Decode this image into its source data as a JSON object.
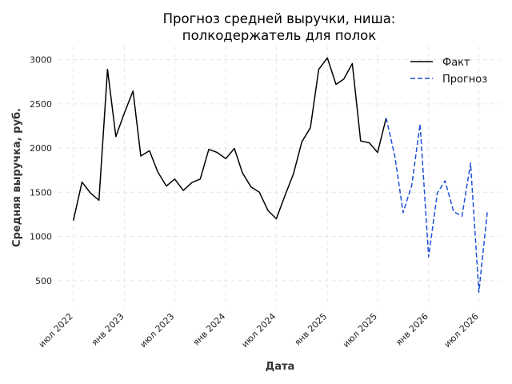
{
  "chart_data": {
    "type": "line",
    "title_lines": [
      "Прогноз средней выручки, ниша:",
      "полкодержатель для полок"
    ],
    "xlabel": "Дата",
    "ylabel": "Средняя выручка, руб.",
    "ylim": [
      200,
      3150
    ],
    "yticks": [
      500,
      1000,
      1500,
      2000,
      2500,
      3000
    ],
    "xticks": [
      {
        "date": "2022-07",
        "label": "июл 2022"
      },
      {
        "date": "2023-01",
        "label": "янв 2023"
      },
      {
        "date": "2023-07",
        "label": "июл 2023"
      },
      {
        "date": "2024-01",
        "label": "янв 2024"
      },
      {
        "date": "2024-07",
        "label": "июл 2024"
      },
      {
        "date": "2025-01",
        "label": "янв 2025"
      },
      {
        "date": "2025-07",
        "label": "июл 2025"
      },
      {
        "date": "2026-01",
        "label": "янв 2026"
      },
      {
        "date": "2026-07",
        "label": "июл 2026"
      }
    ],
    "xlim": [
      "2022-05-08",
      "2026-09-15"
    ],
    "grid": true,
    "legend_position": "top-right",
    "series": [
      {
        "name": "Факт",
        "color": "#000000",
        "style": "solid",
        "points": [
          [
            "2022-07",
            1180
          ],
          [
            "2022-08",
            1615
          ],
          [
            "2022-09",
            1490
          ],
          [
            "2022-10",
            1410
          ],
          [
            "2022-11",
            2890
          ],
          [
            "2022-12",
            2130
          ],
          [
            "2023-01",
            2400
          ],
          [
            "2023-02",
            2645
          ],
          [
            "2023-03",
            1910
          ],
          [
            "2023-04",
            1970
          ],
          [
            "2023-05",
            1730
          ],
          [
            "2023-06",
            1570
          ],
          [
            "2023-07",
            1650
          ],
          [
            "2023-08",
            1520
          ],
          [
            "2023-09",
            1610
          ],
          [
            "2023-10",
            1650
          ],
          [
            "2023-11",
            1985
          ],
          [
            "2023-12",
            1950
          ],
          [
            "2024-01",
            1880
          ],
          [
            "2024-02",
            1995
          ],
          [
            "2024-03",
            1720
          ],
          [
            "2024-04",
            1560
          ],
          [
            "2024-05",
            1500
          ],
          [
            "2024-06",
            1295
          ],
          [
            "2024-07",
            1200
          ],
          [
            "2024-08",
            1460
          ],
          [
            "2024-09",
            1710
          ],
          [
            "2024-10",
            2070
          ],
          [
            "2024-11",
            2230
          ],
          [
            "2024-12",
            2890
          ],
          [
            "2025-01",
            3020
          ],
          [
            "2025-02",
            2720
          ],
          [
            "2025-03",
            2780
          ],
          [
            "2025-04",
            2955
          ],
          [
            "2025-05",
            2080
          ],
          [
            "2025-06",
            2060
          ],
          [
            "2025-07",
            1950
          ],
          [
            "2025-08",
            2340
          ]
        ]
      },
      {
        "name": "Прогноз",
        "color": "#1f4fd8",
        "style": "dashed",
        "points": [
          [
            "2025-08",
            2340
          ],
          [
            "2025-09",
            1910
          ],
          [
            "2025-10",
            1270
          ],
          [
            "2025-11",
            1580
          ],
          [
            "2025-12",
            2270
          ],
          [
            "2026-01",
            770
          ],
          [
            "2026-02",
            1490
          ],
          [
            "2026-03",
            1630
          ],
          [
            "2026-04",
            1280
          ],
          [
            "2026-05",
            1230
          ],
          [
            "2026-06",
            1830
          ],
          [
            "2026-07",
            370
          ],
          [
            "2026-08",
            1300
          ]
        ]
      }
    ]
  }
}
